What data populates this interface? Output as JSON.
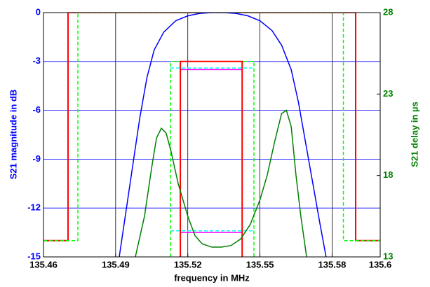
{
  "chart_data": {
    "type": "line",
    "xlabel": "frequency in MHz",
    "ylabel": "S21 magnitude in dB",
    "y2label": "S21 delay in µs",
    "ylabel_color": "#0000ff",
    "y2label_color": "#008000",
    "xlim": [
      135.46,
      135.6
    ],
    "xticks": [
      135.46,
      135.49,
      135.52,
      135.55,
      135.58,
      135.6
    ],
    "ylim": [
      -15,
      0
    ],
    "yticks": [
      0,
      -3,
      -6,
      -9,
      -12,
      -15
    ],
    "y2lim": [
      13,
      28
    ],
    "y2ticks": [
      13,
      18,
      23,
      28
    ],
    "grid": true,
    "xgrid_color": "#000000",
    "ygrid_color": "#0000ff",
    "series": [
      {
        "color": "#ff0000",
        "width": 2,
        "dashed": false,
        "axis": "y",
        "x": [
          135.46,
          135.4702,
          135.4702,
          135.5898,
          135.5898,
          135.6
        ],
        "values": [
          -14,
          -14,
          0,
          0,
          -14,
          -14
        ]
      },
      {
        "color": "#00ff00",
        "width": 1.5,
        "dashed": true,
        "axis": "y",
        "x": [
          135.46,
          135.4743,
          135.4743,
          135.5847,
          135.5847,
          135.6
        ],
        "values": [
          -14,
          -14,
          0,
          0,
          -14,
          -14
        ]
      },
      {
        "color": "#00ff00",
        "width": 1.5,
        "dashed": true,
        "axis": "y",
        "x": [
          135.5128,
          135.5128,
          135.5475,
          135.5475
        ],
        "values": [
          -15,
          -3,
          -3,
          -15
        ]
      },
      {
        "color": "#00ffff",
        "width": 1.5,
        "dashed": true,
        "axis": "y2",
        "x": [
          135.5128,
          135.5475,
          135.5475,
          135.5128,
          135.5475
        ],
        "values": [
          24.6,
          24.6,
          null,
          14.6,
          14.6
        ]
      },
      {
        "color": "#ff00ff",
        "width": 1.5,
        "dashed": false,
        "axis": "y2",
        "x": [
          135.5169,
          135.5426,
          135.5426,
          135.5169,
          135.5426
        ],
        "values": [
          24.5,
          24.5,
          null,
          14.5,
          14.5
        ]
      },
      {
        "color": "#ff0000",
        "width": 2,
        "dashed": false,
        "axis": "y",
        "x": [
          135.5169,
          135.5169,
          135.5426,
          135.5426
        ],
        "values": [
          -15,
          -3,
          -3,
          -15
        ]
      },
      {
        "color": "#008000",
        "width": 1.5,
        "dashed": false,
        "axis": "y2",
        "x": [
          135.4982,
          135.502,
          135.505,
          135.507,
          135.509,
          135.511,
          135.513,
          135.516,
          135.52,
          135.523,
          135.526,
          135.53,
          135.534,
          135.538,
          135.542,
          135.546,
          135.55,
          135.553,
          135.556,
          135.559,
          135.561,
          135.563,
          135.565,
          135.567,
          135.5694
        ],
        "values": [
          13,
          15.5,
          18.5,
          20.3,
          20.9,
          20.6,
          19.5,
          17.5,
          15.5,
          14.3,
          13.8,
          13.6,
          13.6,
          13.7,
          14.1,
          15,
          16.5,
          18,
          20,
          21.8,
          22,
          21,
          18,
          15.5,
          13
        ]
      },
      {
        "color": "#0000ff",
        "width": 1.5,
        "dashed": false,
        "axis": "y",
        "x": [
          135.4915,
          135.494,
          135.497,
          135.5,
          135.503,
          135.506,
          135.51,
          135.515,
          135.52,
          135.525,
          135.53,
          135.535,
          135.54,
          135.545,
          135.55,
          135.555,
          135.559,
          135.563,
          135.566,
          135.569,
          135.572,
          135.575,
          135.5775
        ],
        "values": [
          -15,
          -12.5,
          -9.5,
          -6.5,
          -4,
          -2.3,
          -1.2,
          -0.5,
          -0.2,
          -0.05,
          0,
          0,
          -0.05,
          -0.2,
          -0.5,
          -1.1,
          -2,
          -3.5,
          -5.5,
          -8,
          -10.5,
          -13,
          -15
        ]
      }
    ]
  }
}
